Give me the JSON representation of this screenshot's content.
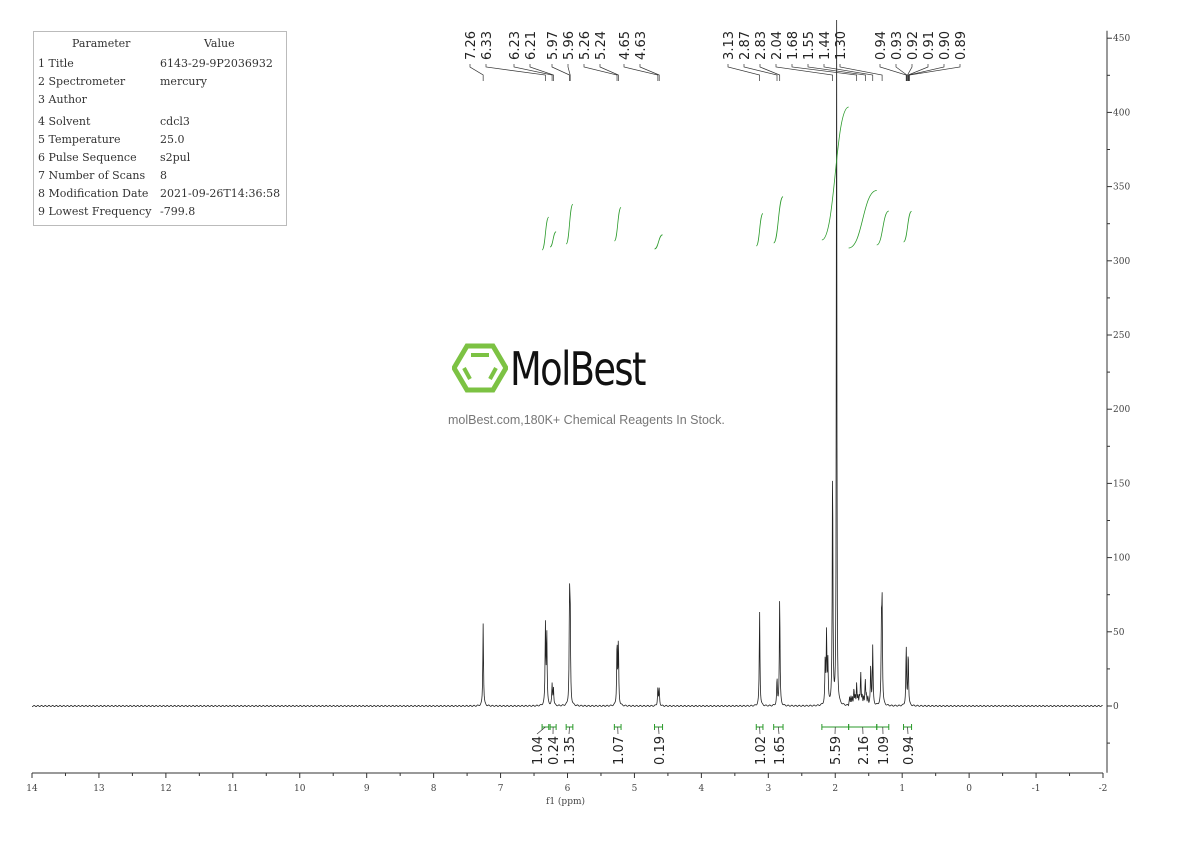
{
  "parameters": {
    "header": [
      "Parameter",
      "Value"
    ],
    "rows": [
      [
        "1 Title",
        "6143-29-9P2036932"
      ],
      [
        "2 Spectrometer",
        "mercury"
      ],
      [
        "3 Author",
        ""
      ],
      [
        "4 Solvent",
        "cdcl3"
      ],
      [
        "5 Temperature",
        "25.0"
      ],
      [
        "6 Pulse Sequence",
        "s2pul"
      ],
      [
        "7 Number of Scans",
        "8"
      ],
      [
        "8 Modification Date",
        "2021-09-26T14:36:58"
      ],
      [
        "9 Lowest Frequency",
        "-799.8"
      ]
    ]
  },
  "watermark": {
    "brand": "MolBest",
    "tagline": "molBest.com,180K+ Chemical Reagents In Stock.",
    "logo_color": "#7cc243"
  },
  "colors": {
    "spectrum": "#222222",
    "integral": "#2a9a2a"
  },
  "chart_data": {
    "type": "line",
    "title": "",
    "xlabel": "f1 (ppm)",
    "ylabel": "",
    "xlim": [
      14,
      -2
    ],
    "ylim": [
      -45,
      455
    ],
    "x_ticks": [
      14,
      13,
      12,
      11,
      10,
      9,
      8,
      7,
      6,
      5,
      4,
      3,
      2,
      1,
      0,
      -1,
      -2
    ],
    "y_ticks": [
      0,
      50,
      100,
      150,
      200,
      250,
      300,
      350,
      400,
      450
    ],
    "grid": false,
    "peak_labels": [
      "7.26",
      "6.33",
      "6.23",
      "6.21",
      "5.97",
      "5.96",
      "5.26",
      "5.24",
      "4.65",
      "4.63",
      "3.13",
      "2.87",
      "2.83",
      "2.04",
      "1.68",
      "1.55",
      "1.44",
      "1.30",
      "0.94",
      "0.93",
      "0.92",
      "0.91",
      "0.90",
      "0.89"
    ],
    "peaks": [
      {
        "ppm": 7.26,
        "height": 56
      },
      {
        "ppm": 6.33,
        "height": 54
      },
      {
        "ppm": 6.31,
        "height": 50
      },
      {
        "ppm": 6.23,
        "height": 14
      },
      {
        "ppm": 6.21,
        "height": 12
      },
      {
        "ppm": 5.97,
        "height": 66
      },
      {
        "ppm": 5.96,
        "height": 60
      },
      {
        "ppm": 5.26,
        "height": 43
      },
      {
        "ppm": 5.24,
        "height": 43
      },
      {
        "ppm": 4.65,
        "height": 12
      },
      {
        "ppm": 4.63,
        "height": 11
      },
      {
        "ppm": 3.13,
        "height": 64
      },
      {
        "ppm": 2.87,
        "height": 18
      },
      {
        "ppm": 2.83,
        "height": 74
      },
      {
        "ppm": 2.15,
        "height": 30
      },
      {
        "ppm": 2.13,
        "height": 48
      },
      {
        "ppm": 2.11,
        "height": 28
      },
      {
        "ppm": 2.04,
        "height": 162
      },
      {
        "ppm": 1.98,
        "height": 600
      },
      {
        "ppm": 1.72,
        "height": 6
      },
      {
        "ppm": 1.68,
        "height": 10
      },
      {
        "ppm": 1.62,
        "height": 18
      },
      {
        "ppm": 1.55,
        "height": 13
      },
      {
        "ppm": 1.47,
        "height": 28
      },
      {
        "ppm": 1.44,
        "height": 40
      },
      {
        "ppm": 1.31,
        "height": 48
      },
      {
        "ppm": 1.3,
        "height": 66
      },
      {
        "ppm": 0.94,
        "height": 40
      },
      {
        "ppm": 0.91,
        "height": 37
      }
    ],
    "integrals": [
      {
        "from": 6.38,
        "to": 6.28,
        "value": "1.04"
      },
      {
        "from": 6.26,
        "to": 6.17,
        "value": "0.24"
      },
      {
        "from": 6.02,
        "to": 5.92,
        "value": "1.35"
      },
      {
        "from": 5.3,
        "to": 5.2,
        "value": "1.07"
      },
      {
        "from": 4.7,
        "to": 4.58,
        "value": "0.19"
      },
      {
        "from": 3.18,
        "to": 3.08,
        "value": "1.02"
      },
      {
        "from": 2.92,
        "to": 2.78,
        "value": "1.65"
      },
      {
        "from": 2.2,
        "to": 1.8,
        "value": "5.59"
      },
      {
        "from": 1.8,
        "to": 1.38,
        "value": "2.16"
      },
      {
        "from": 1.38,
        "to": 1.2,
        "value": "1.09"
      },
      {
        "from": 0.98,
        "to": 0.86,
        "value": "0.94"
      }
    ]
  }
}
